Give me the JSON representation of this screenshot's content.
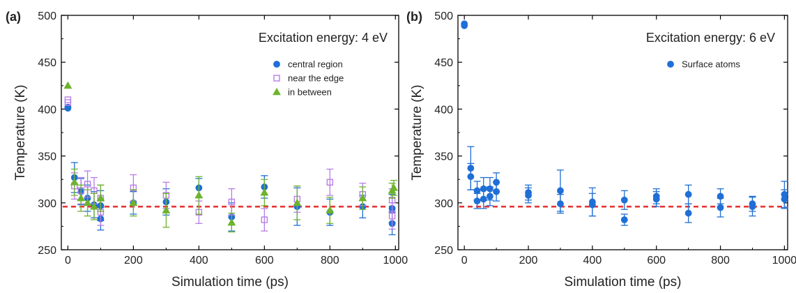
{
  "colors": {
    "central": "#1f6fd6",
    "edge": "#b77ee6",
    "between": "#6db32c",
    "surface": "#1f6fd6",
    "reference": "#e63434",
    "axis": "#000000"
  },
  "chart_data": [
    {
      "type": "scatter",
      "panel_label": "(a)",
      "annotation": "Excitation energy: 4 eV",
      "xlabel": "Simulation time (ps)",
      "ylabel": "Temperature (K)",
      "xlim": [
        -20,
        1010
      ],
      "ylim": [
        250,
        500
      ],
      "xticks": [
        0,
        200,
        400,
        600,
        800,
        1000
      ],
      "yticks": [
        250,
        300,
        350,
        400,
        450,
        500
      ],
      "reference_line": 296,
      "legend_position": "top-right",
      "series": [
        {
          "name": "central region",
          "marker": "circle-filled",
          "color_key": "central",
          "x": [
            0,
            0,
            20,
            40,
            60,
            80,
            100,
            100,
            200,
            300,
            400,
            500,
            600,
            700,
            800,
            900,
            990,
            990
          ],
          "y": [
            401,
            402,
            327,
            312,
            305,
            298,
            283,
            297,
            300,
            301,
            316,
            285,
            317,
            296,
            290,
            296,
            294,
            278
          ],
          "err": [
            0,
            0,
            16,
            14,
            14,
            14,
            12,
            16,
            12,
            14,
            10,
            15,
            12,
            20,
            14,
            12,
            15,
            12
          ]
        },
        {
          "name": "near the edge",
          "marker": "square-open",
          "color_key": "edge",
          "x": [
            0,
            0,
            20,
            40,
            60,
            80,
            100,
            100,
            200,
            300,
            400,
            500,
            600,
            700,
            800,
            900,
            990,
            990
          ],
          "y": [
            407,
            410,
            318,
            313,
            320,
            313,
            305,
            290,
            316,
            308,
            290,
            301,
            282,
            304,
            322,
            309,
            286,
            303
          ],
          "err": [
            0,
            0,
            14,
            14,
            14,
            14,
            14,
            14,
            14,
            14,
            12,
            14,
            12,
            14,
            14,
            12,
            14,
            12
          ]
        },
        {
          "name": "in between",
          "marker": "triangle-filled",
          "color_key": "between",
          "x": [
            0,
            20,
            40,
            60,
            80,
            100,
            200,
            300,
            400,
            500,
            600,
            700,
            800,
            900,
            990,
            995
          ],
          "y": [
            425,
            322,
            305,
            300,
            296,
            305,
            300,
            292,
            308,
            279,
            311,
            300,
            292,
            305,
            313,
            316
          ],
          "err": [
            0,
            14,
            14,
            14,
            14,
            14,
            14,
            18,
            20,
            10,
            14,
            18,
            14,
            12,
            8,
            8
          ]
        }
      ]
    },
    {
      "type": "scatter",
      "panel_label": "(b)",
      "annotation": "Excitation energy: 6 eV",
      "xlabel": "Simulation time (ps)",
      "ylabel": "Temperature (K)",
      "xlim": [
        -20,
        1010
      ],
      "ylim": [
        250,
        500
      ],
      "xticks": [
        0,
        200,
        400,
        600,
        800,
        1000
      ],
      "yticks": [
        250,
        300,
        350,
        400,
        450,
        500
      ],
      "reference_line": 296,
      "legend_position": "top-right",
      "series": [
        {
          "name": "Surface atoms",
          "marker": "circle-filled",
          "color_key": "surface",
          "x": [
            0,
            0,
            20,
            20,
            40,
            40,
            60,
            60,
            80,
            80,
            100,
            100,
            200,
            200,
            300,
            300,
            400,
            400,
            500,
            500,
            600,
            600,
            700,
            700,
            800,
            800,
            900,
            900,
            1000,
            1000
          ],
          "y": [
            489,
            491,
            337,
            328,
            313,
            302,
            315,
            304,
            315,
            307,
            322,
            312,
            311,
            308,
            313,
            299,
            301,
            298,
            303,
            282,
            307,
            304,
            309,
            289,
            307,
            295,
            299,
            296,
            309,
            304
          ],
          "err": [
            0,
            0,
            23,
            14,
            10,
            8,
            12,
            10,
            12,
            10,
            10,
            10,
            8,
            8,
            22,
            10,
            15,
            12,
            10,
            6,
            8,
            8,
            10,
            10,
            8,
            10,
            8,
            10,
            14,
            10
          ]
        }
      ]
    }
  ]
}
